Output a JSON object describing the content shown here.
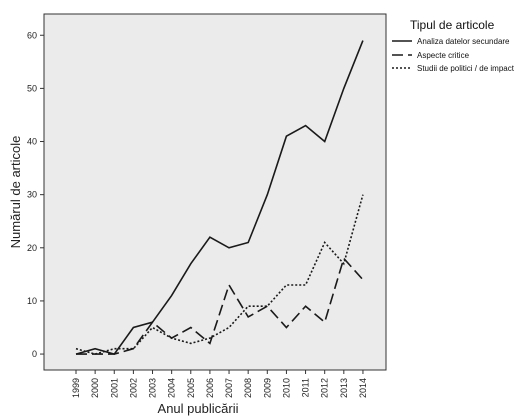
{
  "chart_data": {
    "type": "line",
    "xlabel": "Anul publicării",
    "ylabel": "Numărul de articole",
    "x": [
      "1999",
      "2000",
      "2001",
      "2002",
      "2003",
      "2004",
      "2005",
      "2006",
      "2007",
      "2008",
      "2009",
      "2010",
      "2011",
      "2012",
      "2013",
      "2014"
    ],
    "ylim": [
      -3,
      64
    ],
    "yticks": [
      0,
      10,
      20,
      30,
      40,
      50,
      60
    ],
    "grid": false,
    "legend": {
      "title": "Tipul de articole",
      "placement": "right-top"
    },
    "series": [
      {
        "name": "Analiza datelor secundare",
        "style": "solid",
        "values": [
          0,
          1,
          0,
          5,
          6,
          11,
          17,
          22,
          20,
          21,
          30,
          41,
          43,
          40,
          50,
          59
        ]
      },
      {
        "name": "Aspecte critice",
        "style": "dashed",
        "values": [
          0,
          0,
          0,
          1,
          6,
          3,
          5,
          2,
          13,
          7,
          9,
          5,
          9,
          6,
          18,
          14
        ]
      },
      {
        "name": "Studii de politici / de impact",
        "style": "dotted",
        "values": [
          1,
          0,
          1,
          1,
          5,
          3,
          2,
          3,
          5,
          9,
          9,
          13,
          13,
          21,
          17,
          30
        ]
      }
    ],
    "colors": {
      "plot_background": "#ebebeb",
      "line": "#1a1a1a"
    }
  }
}
